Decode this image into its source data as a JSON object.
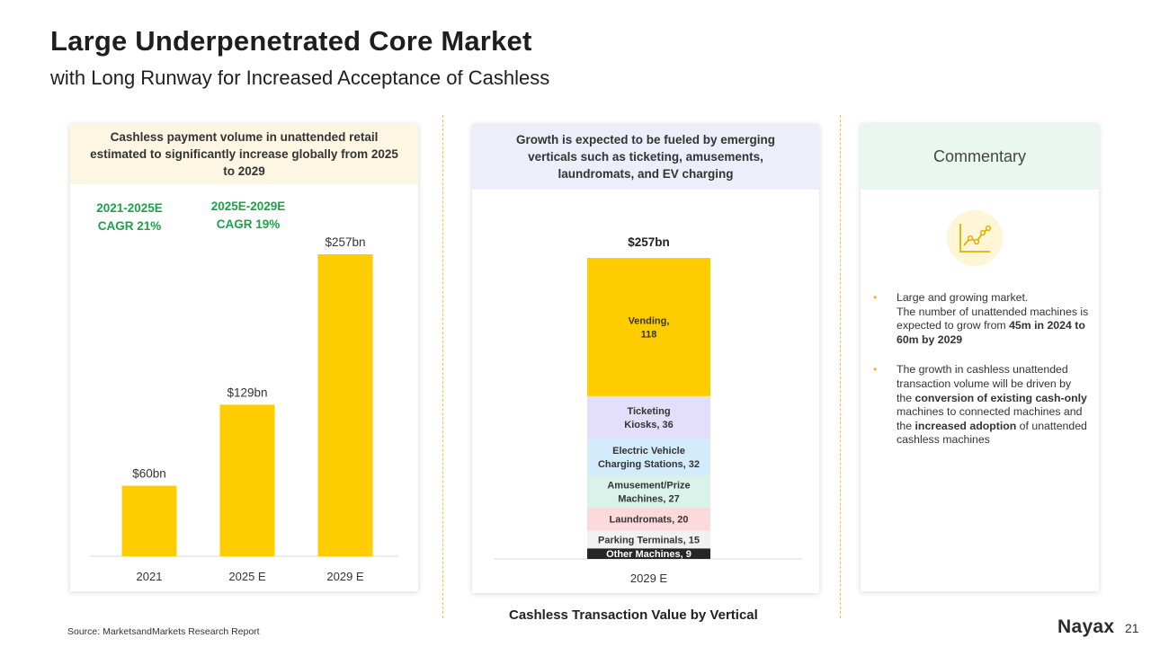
{
  "header": {
    "title": "Large Underpenetrated Core Market",
    "subtitle": "with Long Runway for Increased Acceptance of Cashless"
  },
  "left_panel": {
    "header": "Cashless payment volume in unattended retail estimated to significantly increase globally from 2025 to 2029",
    "header_bg": "#fdf6e3",
    "cagr": [
      {
        "period": "2021-2025E",
        "value": "CAGR 21%"
      },
      {
        "period": "2025E-2029E",
        "value": "CAGR 19%"
      }
    ]
  },
  "middle_panel": {
    "header": "Growth is expected to be fueled by emerging verticals such as ticketing, amusements, laundromats, and EV charging",
    "header_bg": "#eeeefa",
    "caption": "Cashless Transaction Value by Vertical"
  },
  "right_panel": {
    "header": "Commentary",
    "header_bg": "#e9f7ee",
    "icon": "line-chart-icon",
    "bullets": [
      {
        "parts": [
          {
            "text": "Large and growing market.",
            "bold": false,
            "br": true
          },
          {
            "text": "The number of unattended machines is expected to grow from ",
            "bold": false
          },
          {
            "text": "45m in 2024 to 60m by 2029",
            "bold": true
          }
        ]
      },
      {
        "parts": [
          {
            "text": "The growth in cashless unattended transaction volume will be driven by the ",
            "bold": false
          },
          {
            "text": "conversion of existing cash-only",
            "bold": true
          },
          {
            "text": " machines to connected machines and the ",
            "bold": false
          },
          {
            "text": "increased adoption",
            "bold": true
          },
          {
            "text": " of unattended cashless machines",
            "bold": false
          }
        ]
      }
    ]
  },
  "chart_data": [
    {
      "type": "bar",
      "categories": [
        "2021",
        "2025 E",
        "2029 E"
      ],
      "values": [
        60,
        129,
        257
      ],
      "data_labels": [
        "$60bn",
        "$129bn",
        "$257bn"
      ],
      "title": "",
      "xlabel": "",
      "ylabel": "",
      "ylim": [
        0,
        257
      ],
      "color": "#ffcc00",
      "grid": false
    },
    {
      "type": "bar",
      "stacked": true,
      "categories": [
        "2029 E"
      ],
      "total_label": "$257bn",
      "series": [
        {
          "name": "Other Machines",
          "values": [
            9
          ],
          "label": "Other Machines, 9",
          "color": "#262626",
          "text_color": "#ffffff"
        },
        {
          "name": "Parking Terminals",
          "values": [
            15
          ],
          "label": "Parking Terminals, 15",
          "color": "#f1f1f1",
          "text_color": "#333333"
        },
        {
          "name": "Laundromats",
          "values": [
            20
          ],
          "label": "Laundromats, 20",
          "color": "#fcd9dd",
          "text_color": "#333333"
        },
        {
          "name": "Amusement/Prize Machines",
          "values": [
            27
          ],
          "label": "Amusement/Prize Machines, 27",
          "color": "#daf3ea",
          "text_color": "#333333"
        },
        {
          "name": "Electric Vehicle Charging Stations",
          "values": [
            32
          ],
          "label": "Electric Vehicle Charging Stations, 32",
          "color": "#d3ebfb",
          "text_color": "#333333"
        },
        {
          "name": "Ticketing Kiosks",
          "values": [
            36
          ],
          "label": "Ticketing Kiosks, 36",
          "color": "#e3def9",
          "text_color": "#333333"
        },
        {
          "name": "Vending",
          "values": [
            118
          ],
          "label": "Vending, 118",
          "color": "#ffcc00",
          "text_color": "#333333"
        }
      ],
      "title": "",
      "xlabel": "",
      "ylabel": "",
      "grid": false
    }
  ],
  "footer": {
    "source": "Source: MarketsandMarkets Research Report",
    "logo": "Nayax",
    "page_number": "21"
  }
}
